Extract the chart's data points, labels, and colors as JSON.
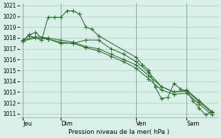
{
  "background_color": "#d8f0e8",
  "grid_color": "#aaccbb",
  "line_color": "#2d6e2d",
  "marker_color": "#2d6e2d",
  "title": "Pression niveau de la mer( hPa )",
  "ylabel_min": 1011,
  "ylabel_max": 1021,
  "ytick_step": 1,
  "day_labels": [
    "Jeu",
    "Dim",
    "Ven",
    "Sam"
  ],
  "day_positions": [
    0,
    3,
    9,
    13
  ],
  "series": [
    {
      "x": [
        0,
        0.5,
        1.5,
        2.0,
        2.5,
        3.0,
        3.5,
        4.0,
        4.5,
        5.0,
        5.5,
        6.0,
        9.0,
        9.5,
        10.0,
        10.5,
        11.0,
        11.5,
        12.0,
        12.5,
        13.0,
        13.5,
        14.0,
        14.5,
        15.0
      ],
      "y": [
        1017.8,
        1018.2,
        1017.8,
        1019.9,
        1019.9,
        1019.9,
        1020.5,
        1020.5,
        1020.2,
        1019.0,
        1018.8,
        1018.2,
        1016.2,
        1015.5,
        1015.0,
        1013.5,
        1012.4,
        1012.5,
        1013.8,
        1013.3,
        1013.1,
        1012.2,
        1011.5,
        1010.9,
        1011.2
      ]
    },
    {
      "x": [
        0,
        0.5,
        1.0,
        1.5,
        2.0,
        3.0,
        4.0,
        5.0,
        6.0,
        7.0,
        8.0,
        9.0,
        10.0,
        11.0,
        12.0,
        13.0,
        14.0,
        15.0
      ],
      "y": [
        1017.7,
        1018.3,
        1018.5,
        1018.0,
        1017.9,
        1017.5,
        1017.5,
        1017.8,
        1017.8,
        1017.0,
        1016.5,
        1015.8,
        1014.8,
        1013.5,
        1013.0,
        1013.2,
        1012.2,
        1011.2
      ]
    },
    {
      "x": [
        0,
        1.0,
        2.0,
        3.0,
        4.0,
        5.0,
        6.0,
        7.0,
        8.0,
        9.0,
        10.0,
        11.0,
        12.0,
        13.0,
        14.0,
        15.0
      ],
      "y": [
        1017.8,
        1018.1,
        1018.0,
        1017.8,
        1017.6,
        1017.2,
        1017.0,
        1016.5,
        1016.0,
        1015.5,
        1014.5,
        1013.5,
        1013.0,
        1013.1,
        1012.1,
        1011.1
      ]
    },
    {
      "x": [
        0,
        1.0,
        2.0,
        3.0,
        4.0,
        5.0,
        6.0,
        7.0,
        8.0,
        9.0,
        10.0,
        11.0,
        12.0,
        13.0,
        14.0,
        15.0
      ],
      "y": [
        1017.7,
        1018.0,
        1017.9,
        1017.6,
        1017.5,
        1017.1,
        1016.8,
        1016.3,
        1015.8,
        1015.2,
        1014.2,
        1013.2,
        1012.8,
        1012.9,
        1011.9,
        1010.9
      ]
    }
  ]
}
